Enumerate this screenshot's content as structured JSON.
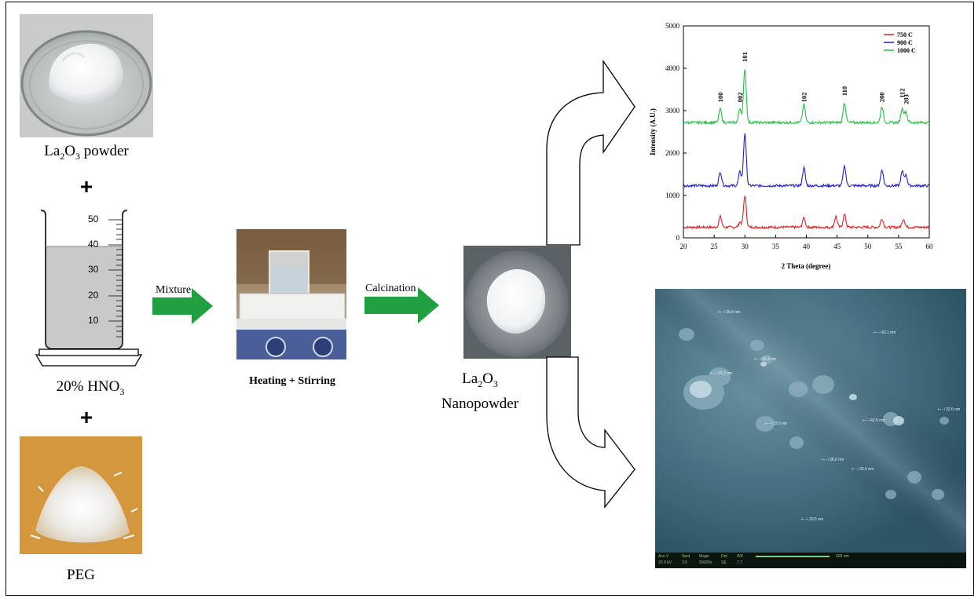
{
  "materials": {
    "la2o3": {
      "base": "La",
      "sub1": "2",
      "mid": "O",
      "sub2": "3",
      "suffix": " powder"
    },
    "plus": "+",
    "hno3": {
      "prefix": "20% HNO",
      "sub": "3"
    },
    "peg": "PEG"
  },
  "cylinder": {
    "ticks": [
      "50",
      "40",
      "30",
      "20",
      "10"
    ]
  },
  "steps": {
    "mixture": "Mixture",
    "heating": "Heating + Stirring",
    "calcination": "Calcination"
  },
  "product": {
    "line1": {
      "base": "La",
      "sub1": "2",
      "mid": "O",
      "sub2": "3"
    },
    "line2": "Nanopowder"
  },
  "colors": {
    "arrow_green": "#20a040",
    "s750": "#e02020",
    "s900": "#2020d0",
    "s1000": "#20c040"
  },
  "chart_data": {
    "type": "line",
    "xlabel": "2 Theta (degree)",
    "ylabel": "Intensity (A.U.)",
    "xlim": [
      20,
      60
    ],
    "ylim": [
      0,
      5000
    ],
    "xticks": [
      "20",
      "25",
      "30",
      "35",
      "40",
      "45",
      "50",
      "55",
      "60"
    ],
    "yticks": [
      "0",
      "1000",
      "2000",
      "3000",
      "4000",
      "5000"
    ],
    "legend_position": "top-right",
    "peaks": [
      {
        "x": 26.0,
        "label": "100"
      },
      {
        "x": 29.2,
        "label": "002"
      },
      {
        "x": 30.0,
        "label": "101"
      },
      {
        "x": 39.6,
        "label": "102"
      },
      {
        "x": 46.2,
        "label": "110"
      },
      {
        "x": 52.3,
        "label": "200"
      },
      {
        "x": 55.6,
        "label": "112"
      },
      {
        "x": 56.2,
        "label": "203"
      }
    ],
    "series": [
      {
        "name": "750 C",
        "baseline": 250,
        "peaks": [
          [
            26.0,
            250
          ],
          [
            29.2,
            120
          ],
          [
            30.0,
            750
          ],
          [
            39.6,
            220
          ],
          [
            44.8,
            250
          ],
          [
            46.2,
            300
          ],
          [
            52.3,
            200
          ],
          [
            55.8,
            200
          ]
        ]
      },
      {
        "name": "900 C",
        "baseline": 1230,
        "peaks": [
          [
            26.0,
            330
          ],
          [
            29.2,
            330
          ],
          [
            30.0,
            1250
          ],
          [
            39.6,
            420
          ],
          [
            46.2,
            470
          ],
          [
            52.3,
            380
          ],
          [
            55.6,
            330
          ],
          [
            56.2,
            250
          ]
        ]
      },
      {
        "name": "1000 C",
        "baseline": 2720,
        "peaks": [
          [
            26.0,
            320
          ],
          [
            29.2,
            330
          ],
          [
            30.0,
            1280
          ],
          [
            39.6,
            420
          ],
          [
            46.2,
            470
          ],
          [
            52.3,
            380
          ],
          [
            55.6,
            330
          ],
          [
            56.2,
            250
          ]
        ]
      }
    ]
  },
  "sem": {
    "measurements": [
      "36.8 nm",
      "43.1 nm",
      "26.3 nm",
      "23.2 nm",
      "33.5 nm",
      "42.5 nm",
      "32.5 nm",
      "36.0 nm",
      "33.6 nm",
      "29.5 nm"
    ],
    "footer": {
      "hv": "Acc.V",
      "hv_val": "20.0 kV",
      "spot": "Spot",
      "spot_val": "3.0",
      "magn": "Magn",
      "magn_val": "50000x",
      "det": "Det",
      "det_val": "SE",
      "wd": "WD",
      "wd_val": "7.7",
      "scale": "500 nm"
    }
  }
}
